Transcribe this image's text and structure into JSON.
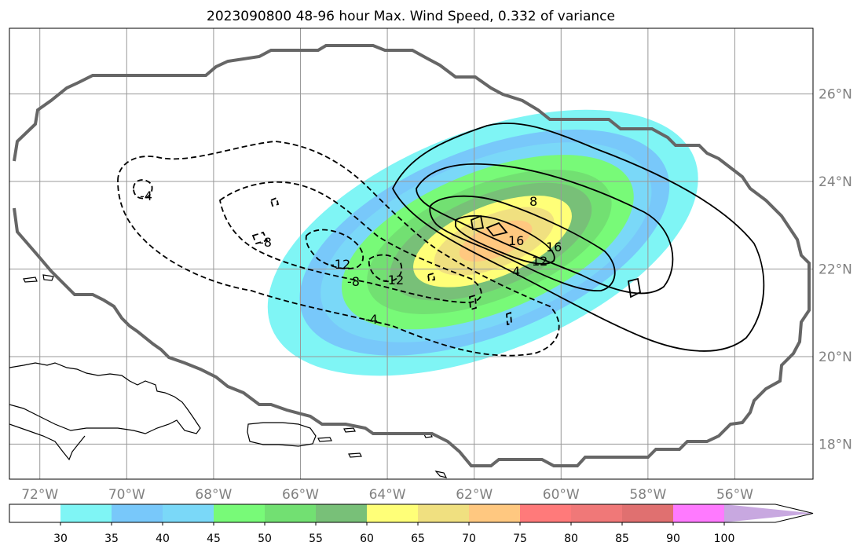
{
  "title": "2023090800 48-96 hour Max. Wind Speed, 0.332 of variance",
  "map": {
    "lon_range": [
      -72.7,
      -54.2
    ],
    "lat_range": [
      17.2,
      27.5
    ],
    "lat_ticks": [
      {
        "value": 18,
        "label": "18°N"
      },
      {
        "value": 20,
        "label": "20°N"
      },
      {
        "value": 22,
        "label": "22°N"
      },
      {
        "value": 24,
        "label": "24°N"
      },
      {
        "value": 26,
        "label": "26°N"
      }
    ],
    "lon_ticks": [
      {
        "value": -72,
        "label": "72°W"
      },
      {
        "value": -70,
        "label": "70°W"
      },
      {
        "value": -68,
        "label": "68°W"
      },
      {
        "value": -66,
        "label": "66°W"
      },
      {
        "value": -64,
        "label": "64°W"
      },
      {
        "value": -62,
        "label": "62°W"
      },
      {
        "value": -60,
        "label": "60°W"
      },
      {
        "value": -58,
        "label": "58°W"
      },
      {
        "value": -56,
        "label": "56°W"
      }
    ],
    "grid": true,
    "coastline_color": "#000000",
    "boundary_color": "#666666"
  },
  "wind_field": {
    "center": [
      -61.8,
      22.6
    ],
    "orientation_deg": -22,
    "levels": [
      30,
      35,
      40,
      45,
      50,
      55,
      60,
      65,
      70
    ],
    "colors": [
      "#7ff5f5",
      "#78c8fa",
      "#7ad8f8",
      "#78fa78",
      "#72e072",
      "#78c078",
      "#ffff78",
      "#f0e080",
      "#ffc880"
    ]
  },
  "contours": {
    "positive_labels": [
      "8",
      "16",
      "16",
      "12",
      "4"
    ],
    "negative_labels": [
      "-4",
      "-8",
      "-12",
      "-8",
      "-12",
      "-4"
    ]
  },
  "colorbar": {
    "ticks": [
      "30",
      "35",
      "40",
      "45",
      "50",
      "55",
      "60",
      "65",
      "70",
      "75",
      "80",
      "85",
      "90",
      "100"
    ],
    "colors": [
      "#ffffff",
      "#7ff5f5",
      "#78c8fa",
      "#7ad8f8",
      "#78fa78",
      "#72e072",
      "#78c078",
      "#ffff78",
      "#f0e080",
      "#ffc880",
      "#ff7a7a",
      "#f07878",
      "#e07070",
      "#ff7aff",
      "#c8a8e0"
    ],
    "extend": "max"
  }
}
